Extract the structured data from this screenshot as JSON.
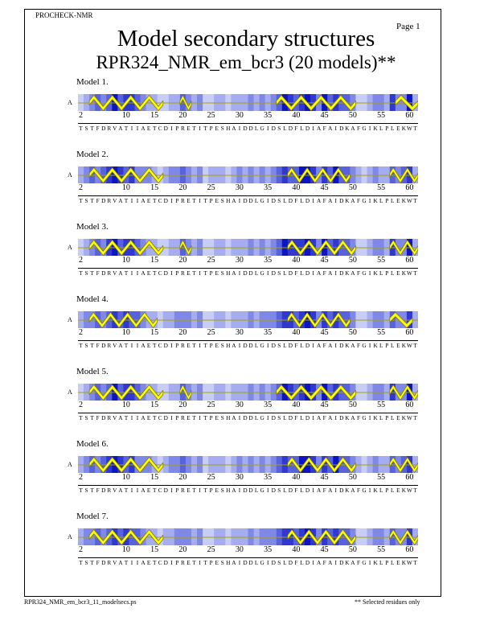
{
  "header": {
    "program": "PROCHECK-NMR",
    "page_label": "Page  1",
    "title": "Model secondary structures",
    "subtitle": "RPR324_NMR_em_bcr3 (20 models)**"
  },
  "chain_label": "A",
  "sequence": "TSTFDRVATIIAETCDIPRETITPESHAIDDLGIDSLDFLDIAFAIDKAFGIKLPLEKWT",
  "residue_start": 2,
  "tick_numbers": [
    "2",
    "10",
    "15",
    "20",
    "25",
    "30",
    "35",
    "40",
    "45",
    "50",
    "55",
    "60"
  ],
  "models": [
    {
      "label": "Model  1.",
      "helices": [
        [
          4,
          16
        ],
        [
          20,
          21
        ],
        [
          37,
          50
        ],
        [
          58,
          61
        ]
      ],
      "density": [
        1,
        2,
        3,
        4,
        3,
        4,
        6,
        4,
        5,
        5,
        4,
        3,
        2,
        2,
        1,
        1,
        2,
        2,
        4,
        3,
        2,
        3,
        1,
        1,
        2,
        2,
        1,
        2,
        2,
        2,
        3,
        2,
        3,
        2,
        3,
        4,
        6,
        5,
        4,
        5,
        7,
        5,
        3,
        6,
        4,
        5,
        4,
        4,
        3,
        1,
        1,
        2,
        3,
        3,
        2,
        5,
        3,
        3,
        6,
        2
      ]
    },
    {
      "label": "Model  2.",
      "helices": [
        [
          4,
          16
        ],
        [
          39,
          49
        ],
        [
          57,
          61
        ]
      ],
      "density": [
        2,
        3,
        4,
        3,
        4,
        5,
        6,
        5,
        4,
        5,
        3,
        3,
        3,
        2,
        1,
        2,
        3,
        3,
        4,
        3,
        2,
        3,
        1,
        2,
        2,
        2,
        1,
        2,
        3,
        2,
        3,
        2,
        3,
        2,
        3,
        4,
        5,
        4,
        4,
        6,
        6,
        5,
        3,
        5,
        4,
        6,
        4,
        4,
        3,
        2,
        1,
        2,
        3,
        2,
        2,
        4,
        3,
        4,
        5,
        2
      ]
    },
    {
      "label": "Model  3.",
      "helices": [
        [
          4,
          16
        ],
        [
          20,
          21
        ],
        [
          39,
          50
        ],
        [
          57,
          61
        ]
      ],
      "density": [
        1,
        2,
        3,
        4,
        3,
        5,
        6,
        4,
        5,
        5,
        4,
        3,
        2,
        2,
        1,
        1,
        2,
        2,
        4,
        3,
        2,
        3,
        1,
        1,
        2,
        2,
        1,
        2,
        2,
        2,
        3,
        2,
        3,
        2,
        3,
        4,
        6,
        5,
        5,
        5,
        6,
        5,
        3,
        6,
        4,
        5,
        4,
        4,
        3,
        1,
        1,
        2,
        3,
        3,
        2,
        5,
        3,
        3,
        6,
        2
      ]
    },
    {
      "label": "Model  4.",
      "helices": [
        [
          4,
          15
        ],
        [
          39,
          49
        ],
        [
          57,
          60
        ]
      ],
      "density": [
        2,
        3,
        3,
        4,
        3,
        4,
        5,
        4,
        5,
        4,
        4,
        3,
        2,
        2,
        1,
        2,
        2,
        3,
        3,
        3,
        2,
        3,
        1,
        1,
        2,
        2,
        1,
        2,
        2,
        2,
        3,
        2,
        3,
        3,
        3,
        4,
        5,
        5,
        4,
        5,
        6,
        5,
        3,
        5,
        4,
        5,
        4,
        4,
        3,
        1,
        1,
        2,
        3,
        3,
        2,
        4,
        3,
        3,
        5,
        2
      ]
    },
    {
      "label": "Model  5.",
      "helices": [
        [
          4,
          16
        ],
        [
          20,
          21
        ],
        [
          37,
          50
        ],
        [
          57,
          61
        ]
      ],
      "density": [
        1,
        2,
        3,
        4,
        3,
        4,
        6,
        4,
        5,
        5,
        4,
        3,
        2,
        2,
        1,
        1,
        2,
        2,
        4,
        3,
        2,
        3,
        1,
        1,
        2,
        2,
        1,
        2,
        2,
        2,
        3,
        2,
        3,
        2,
        3,
        4,
        6,
        5,
        4,
        5,
        7,
        5,
        3,
        6,
        4,
        5,
        4,
        4,
        3,
        1,
        1,
        2,
        3,
        3,
        2,
        5,
        3,
        3,
        6,
        2
      ]
    },
    {
      "label": "Model  6.",
      "helices": [
        [
          4,
          16
        ],
        [
          39,
          50
        ],
        [
          57,
          61
        ]
      ],
      "density": [
        2,
        3,
        4,
        3,
        4,
        5,
        6,
        5,
        4,
        5,
        3,
        3,
        3,
        2,
        1,
        2,
        3,
        3,
        4,
        3,
        2,
        3,
        1,
        2,
        2,
        2,
        1,
        2,
        3,
        2,
        3,
        2,
        3,
        2,
        3,
        4,
        5,
        4,
        4,
        6,
        6,
        5,
        3,
        5,
        4,
        6,
        4,
        4,
        3,
        2,
        1,
        2,
        3,
        2,
        2,
        4,
        3,
        4,
        5,
        2
      ]
    },
    {
      "label": "Model  7.",
      "helices": [
        [
          4,
          16
        ],
        [
          39,
          50
        ],
        [
          57,
          61
        ]
      ],
      "density": [
        2,
        3,
        3,
        4,
        3,
        4,
        5,
        4,
        5,
        4,
        4,
        3,
        2,
        2,
        1,
        2,
        2,
        3,
        3,
        3,
        2,
        3,
        1,
        1,
        2,
        2,
        1,
        2,
        2,
        2,
        3,
        2,
        3,
        3,
        3,
        4,
        5,
        5,
        4,
        5,
        6,
        5,
        3,
        5,
        4,
        5,
        4,
        4,
        3,
        1,
        1,
        2,
        3,
        3,
        2,
        4,
        3,
        3,
        5,
        2
      ]
    }
  ],
  "footer": {
    "filename": "RPR324_NMR_em_bcr3_11_modelsecs.ps",
    "note": "** Selected residues only"
  },
  "colors": {
    "helix_fill": "#ffff00",
    "helix_stroke": "#777700",
    "coil_line": "#f4f400",
    "density_scale": [
      "#e4e6fb",
      "#c8cdf6",
      "#a5acef",
      "#7f88e6",
      "#5862dc",
      "#3038cf",
      "#0d14c2"
    ]
  }
}
